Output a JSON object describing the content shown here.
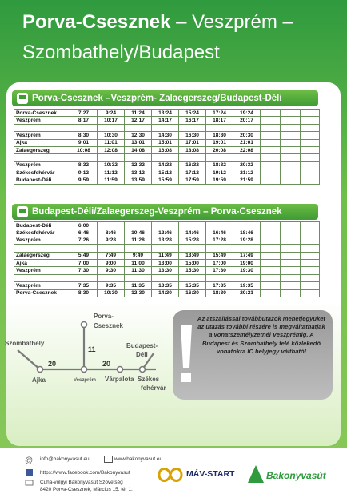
{
  "header": {
    "title_bold": "Porva-Csesznek",
    "title_rest": " – Veszprém –",
    "title_line2": "Szombathely/Budapest"
  },
  "timetables": [
    {
      "heading": "Porva-Csesznek –Veszprém- Zalaegerszeg/Budapest-Déli",
      "groups": [
        [
          [
            "Porva-Csesznek",
            "7:27",
            "9:24",
            "11:24",
            "13:24",
            "15:24",
            "17:24",
            "19:24"
          ],
          [
            "Veszprém",
            "8:17",
            "10:17",
            "12:17",
            "14:17",
            "16:17",
            "18:17",
            "20:17"
          ]
        ],
        [
          [
            "Veszprém",
            "8:30",
            "10:30",
            "12:30",
            "14:30",
            "16:30",
            "18:30",
            "20:30"
          ],
          [
            "Ajka",
            "9:01",
            "11:01",
            "13:01",
            "15:01",
            "17:01",
            "19:01",
            "21:01"
          ],
          [
            "Zalaegerszeg",
            "10:08",
            "12:08",
            "14:08",
            "16:08",
            "18:08",
            "20:08",
            "22:08"
          ]
        ],
        [
          [
            "Veszprém",
            "8:32",
            "10:32",
            "12:32",
            "14:32",
            "16:32",
            "18:32",
            "20:32"
          ],
          [
            "Székesfehérvár",
            "9:12",
            "11:12",
            "13:12",
            "15:12",
            "17:12",
            "19:12",
            "21:12"
          ],
          [
            "Budapest-Déli",
            "9:59",
            "11:59",
            "13:59",
            "15:59",
            "17:59",
            "19:59",
            "21:59"
          ]
        ]
      ]
    },
    {
      "heading": "Budapest-Déli/Zalaegerszeg-Veszprém – Porva-Csesznek",
      "groups": [
        [
          [
            "Budapest-Déli",
            "6:00"
          ],
          [
            "Székesfehérvár",
            "6:46",
            "8:46",
            "10:46",
            "12:46",
            "14:46",
            "16:46",
            "18:46"
          ],
          [
            "Veszprém",
            "7:26",
            "9:28",
            "11:28",
            "13:28",
            "15:28",
            "17:28",
            "19:28"
          ]
        ],
        [
          [
            "Zalaegerszeg",
            "5:49",
            "7:49",
            "9:49",
            "11:49",
            "13:49",
            "15:49",
            "17:49"
          ],
          [
            "Ajka",
            "7:00",
            "9:00",
            "11:00",
            "13:00",
            "15:00",
            "17:00",
            "19:00"
          ],
          [
            "Veszprém",
            "7:30",
            "9:30",
            "11:30",
            "13:30",
            "15:30",
            "17:30",
            "19:30"
          ]
        ],
        [
          [
            "Veszprém",
            "7:35",
            "9:35",
            "11:35",
            "13:35",
            "15:35",
            "17:35",
            "19:35"
          ],
          [
            "Porva-Csesznek",
            "8:30",
            "10:30",
            "12:30",
            "14:30",
            "16:30",
            "18:30",
            "20:21"
          ]
        ]
      ]
    }
  ],
  "map": {
    "stations": [
      "Porva-",
      "Csesznek",
      "Szombathely",
      "Budapest-",
      "Déli",
      "Ajka",
      "Veszprém",
      "Várpalota",
      "Székes",
      "fehérvár"
    ],
    "distances": [
      20,
      11,
      20
    ]
  },
  "notice": "Az átszállással továbbutazók menetjegyüket az utazás további részére is megváltathatják a vonatszemélyzetnél Veszprémig. A Budapest és Szombathely felé közlekedő vonatokra IC helyjegy váltható!",
  "footer": {
    "email": "info@bakonyvasut.eu",
    "website": "www.bakonyvasut.eu",
    "facebook": "https://www.facebook.com/Bakonyvasut",
    "organization": "Cuha-völgyi Bakonyvasút Szövetség",
    "address": "8420 Porva-Csesznek, Március 15. tér 1.",
    "logo_mav": "MÁV-START",
    "logo_bakony": "Bakonyvasút"
  }
}
